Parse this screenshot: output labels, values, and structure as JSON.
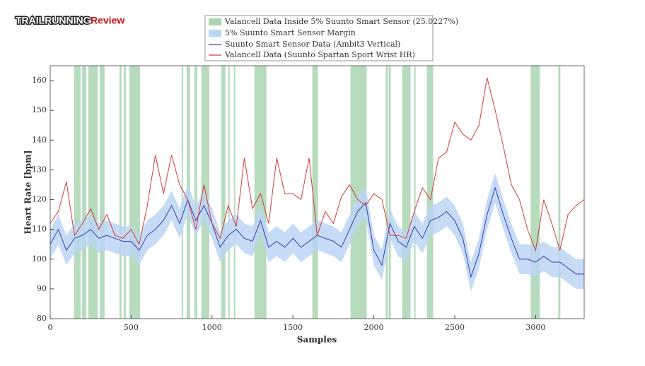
{
  "chart_data": {
    "type": "line",
    "watermark": [
      "TRAILRUNNING",
      "Review"
    ],
    "xlabel": "Samples",
    "ylabel": "Heart Rate [bpm]",
    "xlim": [
      0,
      3300
    ],
    "ylim": [
      80,
      165
    ],
    "xticks": [
      0,
      500,
      1000,
      1500,
      2000,
      2500,
      3000
    ],
    "yticks": [
      80,
      90,
      100,
      110,
      120,
      130,
      140,
      150,
      160
    ],
    "x": [
      0,
      50,
      100,
      150,
      200,
      250,
      300,
      350,
      400,
      450,
      500,
      550,
      600,
      650,
      700,
      750,
      800,
      850,
      900,
      950,
      1000,
      1050,
      1100,
      1150,
      1200,
      1250,
      1300,
      1350,
      1400,
      1450,
      1500,
      1550,
      1600,
      1650,
      1700,
      1750,
      1800,
      1850,
      1900,
      1950,
      2000,
      2050,
      2100,
      2150,
      2200,
      2250,
      2300,
      2350,
      2400,
      2450,
      2500,
      2550,
      2600,
      2650,
      2700,
      2750,
      2800,
      2850,
      2900,
      2950,
      3000,
      3050,
      3100,
      3150,
      3200,
      3250,
      3300
    ],
    "bands": {
      "name": "Valancell Data Inside 5% Suunto Smart Sensor (25.0227%)",
      "color": "#a9d5b1",
      "ranges": [
        [
          148,
          188
        ],
        [
          197,
          223
        ],
        [
          236,
          293
        ],
        [
          306,
          336
        ],
        [
          428,
          441
        ],
        [
          454,
          467
        ],
        [
          489,
          555
        ],
        [
          812,
          821
        ],
        [
          843,
          865
        ],
        [
          891,
          908
        ],
        [
          934,
          983
        ],
        [
          1057,
          1083
        ],
        [
          1100,
          1109
        ],
        [
          1135,
          1144
        ],
        [
          1262,
          1336
        ],
        [
          1620,
          1655
        ],
        [
          1856,
          1956
        ],
        [
          2074,
          2087
        ],
        [
          2092,
          2105
        ],
        [
          2175,
          2227
        ],
        [
          2249,
          2258
        ],
        [
          2328,
          2367
        ],
        [
          2969,
          3026
        ],
        [
          3140,
          3153
        ]
      ]
    },
    "margin": {
      "name": "5% Suunto Smart Sensor Margin",
      "color": "#bcd5f3",
      "lower": [
        100,
        105,
        98,
        102,
        103,
        105,
        102,
        103,
        102,
        101,
        101,
        98,
        103,
        105,
        108,
        113,
        107,
        115,
        108,
        113,
        107,
        99,
        103,
        105,
        102,
        101,
        108,
        99,
        101,
        99,
        102,
        99,
        101,
        103,
        102,
        101,
        99,
        105,
        111,
        114,
        98,
        93,
        107,
        101,
        99,
        106,
        102,
        108,
        109,
        111,
        108,
        102,
        89,
        97,
        110,
        119,
        110,
        102,
        95,
        95,
        94,
        96,
        94,
        94,
        92,
        90,
        90
      ],
      "upper": [
        110,
        115,
        108,
        112,
        113,
        115,
        112,
        113,
        112,
        111,
        111,
        108,
        113,
        115,
        118,
        123,
        117,
        125,
        118,
        123,
        117,
        109,
        113,
        115,
        112,
        111,
        118,
        109,
        111,
        109,
        112,
        109,
        111,
        113,
        112,
        111,
        109,
        115,
        121,
        124,
        108,
        103,
        117,
        111,
        109,
        116,
        112,
        118,
        119,
        121,
        118,
        112,
        99,
        107,
        120,
        129,
        120,
        112,
        105,
        105,
        104,
        106,
        104,
        104,
        102,
        100,
        100
      ]
    },
    "series": [
      {
        "name": "Suunto Smart Sensor Data (Ambit3 Vertical)",
        "color": "#3b3bb5",
        "values": [
          105,
          110,
          103,
          107,
          108,
          110,
          107,
          108,
          107,
          106,
          106,
          103,
          108,
          110,
          113,
          118,
          112,
          120,
          113,
          118,
          112,
          104,
          108,
          110,
          107,
          106,
          113,
          104,
          106,
          104,
          107,
          104,
          106,
          108,
          107,
          106,
          104,
          110,
          116,
          119,
          103,
          98,
          112,
          106,
          104,
          111,
          107,
          113,
          114,
          116,
          113,
          107,
          94,
          102,
          115,
          124,
          115,
          107,
          100,
          100,
          99,
          101,
          99,
          99,
          97,
          95,
          95
        ]
      },
      {
        "name": "Valancell Data (Suunto Spartan Sport Wrist HR)",
        "color": "#d23b3b",
        "values": [
          112,
          116,
          126,
          108,
          112,
          117,
          110,
          115,
          108,
          107,
          110,
          105,
          118,
          135,
          122,
          135,
          125,
          120,
          110,
          125,
          112,
          107,
          118,
          111,
          134,
          117,
          122,
          112,
          134,
          122,
          122,
          120,
          134,
          108,
          116,
          112,
          121,
          125,
          120,
          118,
          122,
          120,
          108,
          108,
          107,
          116,
          124,
          120,
          134,
          136,
          146,
          142,
          140,
          145,
          161,
          150,
          138,
          125,
          120,
          110,
          103,
          120,
          112,
          103,
          115,
          118,
          120
        ]
      }
    ]
  }
}
